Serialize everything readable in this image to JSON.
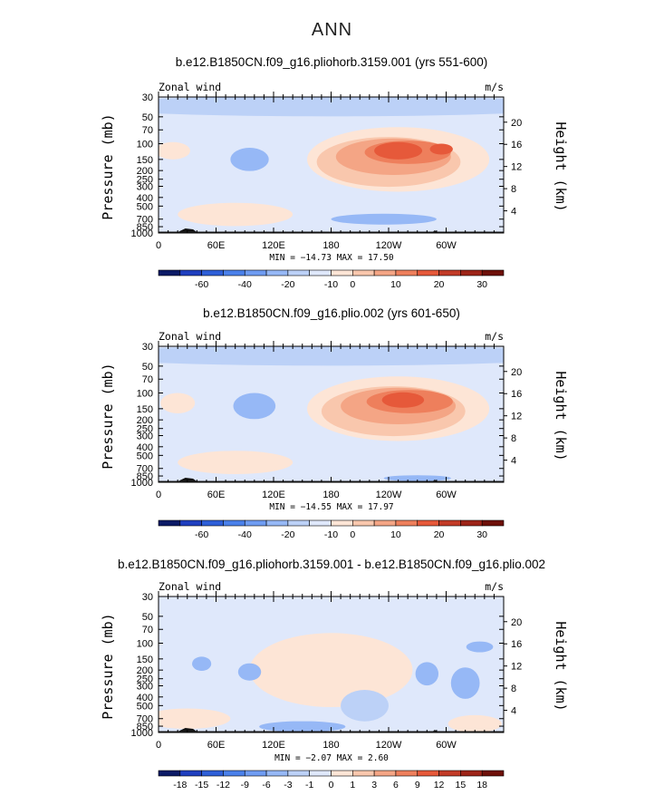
{
  "title": "ANN",
  "colors": {
    "blue_ramp": [
      "#0b1a66",
      "#1f3fbf",
      "#2e5fd8",
      "#4a80ea",
      "#6f9cf2",
      "#96b8f6",
      "#bcd1f7",
      "#dfe8fb"
    ],
    "red_ramp": [
      "#fde5d6",
      "#f9c7ad",
      "#f4a585",
      "#ee7f5c",
      "#e6593a",
      "#c23b27",
      "#9d2418",
      "#6e1009"
    ]
  },
  "panels": [
    {
      "title": "b.e12.B1850CN.f09_g16.pliohorb.3159.001 (yrs 551-600)",
      "left_label": "Zonal wind",
      "right_label": "m/s",
      "y_axis_label": "Pressure (mb)",
      "y_right_label": "Height (km)",
      "stats": "MIN = −14.73  MAX =  17.50",
      "colorbar_labels": [
        "-60",
        "-40",
        "-20",
        "-10",
        "0",
        "10",
        "20",
        "30"
      ]
    },
    {
      "title": "b.e12.B1850CN.f09_g16.plio.002 (yrs 601-650)",
      "left_label": "Zonal wind",
      "right_label": "m/s",
      "y_axis_label": "Pressure (mb)",
      "y_right_label": "Height (km)",
      "stats": "MIN = −14.55  MAX =  17.97",
      "colorbar_labels": [
        "-60",
        "-40",
        "-20",
        "-10",
        "0",
        "10",
        "20",
        "30"
      ]
    },
    {
      "title": "b.e12.B1850CN.f09_g16.pliohorb.3159.001 - b.e12.B1850CN.f09_g16.plio.002",
      "left_label": "Zonal wind",
      "right_label": "m/s",
      "y_axis_label": "Pressure (mb)",
      "y_right_label": "Height (km)",
      "stats": "MIN =  −2.07  MAX =   2.60",
      "colorbar_labels": [
        "-18",
        "-15",
        "-12",
        "-9",
        "-6",
        "-3",
        "-1",
        "0",
        "1",
        "3",
        "6",
        "9",
        "12",
        "15",
        "18"
      ]
    }
  ],
  "chart_data": [
    {
      "type": "heatmap",
      "title": "b.e12.B1850CN.f09_g16.pliohorb.3159.001 (yrs 551-600)",
      "xlabel": "",
      "ylabel": "Pressure (mb)",
      "y2label": "Height (km)",
      "x_ticks": [
        "0",
        "60E",
        "120E",
        "180",
        "120W",
        "60W"
      ],
      "y_ticks": [
        "30",
        "50",
        "70",
        "100",
        "150",
        "200",
        "250",
        "300",
        "400",
        "500",
        "700",
        "850",
        "1000"
      ],
      "y_right_ticks": [
        "20",
        "16",
        "12",
        "8",
        "4"
      ],
      "xlim": [
        0,
        360
      ],
      "ylim": [
        1000,
        30
      ],
      "y_scale": "log",
      "units": "m/s",
      "min": -14.73,
      "max": 17.5,
      "levels": [
        -60,
        -40,
        -20,
        -10,
        0,
        10,
        20,
        30
      ]
    },
    {
      "type": "heatmap",
      "title": "b.e12.B1850CN.f09_g16.plio.002 (yrs 601-650)",
      "xlabel": "",
      "ylabel": "Pressure (mb)",
      "y2label": "Height (km)",
      "x_ticks": [
        "0",
        "60E",
        "120E",
        "180",
        "120W",
        "60W"
      ],
      "y_ticks": [
        "30",
        "50",
        "70",
        "100",
        "150",
        "200",
        "250",
        "300",
        "400",
        "500",
        "700",
        "850",
        "1000"
      ],
      "y_right_ticks": [
        "20",
        "16",
        "12",
        "8",
        "4"
      ],
      "xlim": [
        0,
        360
      ],
      "ylim": [
        1000,
        30
      ],
      "y_scale": "log",
      "units": "m/s",
      "min": -14.55,
      "max": 17.97,
      "levels": [
        -60,
        -40,
        -20,
        -10,
        0,
        10,
        20,
        30
      ]
    },
    {
      "type": "heatmap",
      "title": "b.e12.B1850CN.f09_g16.pliohorb.3159.001 - b.e12.B1850CN.f09_g16.plio.002",
      "xlabel": "",
      "ylabel": "Pressure (mb)",
      "y2label": "Height (km)",
      "x_ticks": [
        "0",
        "60E",
        "120E",
        "180",
        "120W",
        "60W"
      ],
      "y_ticks": [
        "30",
        "50",
        "70",
        "100",
        "150",
        "200",
        "250",
        "300",
        "400",
        "500",
        "700",
        "850",
        "1000"
      ],
      "y_right_ticks": [
        "20",
        "16",
        "12",
        "8",
        "4"
      ],
      "xlim": [
        0,
        360
      ],
      "ylim": [
        1000,
        30
      ],
      "y_scale": "log",
      "units": "m/s",
      "min": -2.07,
      "max": 2.6,
      "levels": [
        -18,
        -15,
        -12,
        -9,
        -6,
        -3,
        -1,
        0,
        1,
        3,
        6,
        9,
        12,
        15,
        18
      ]
    }
  ]
}
